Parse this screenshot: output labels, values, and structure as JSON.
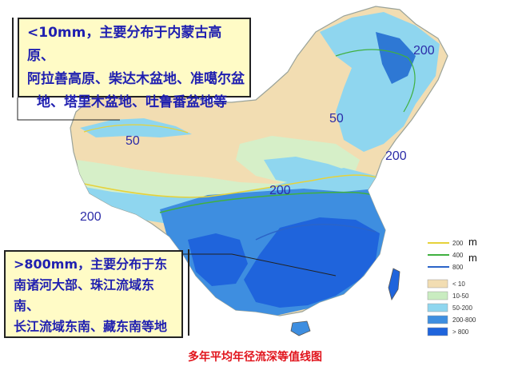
{
  "callouts": {
    "arid": {
      "lines": [
        "<10mm，主要分布于内蒙古高原、",
        "阿拉善高原、柴达木盆地、准噶尔盆",
        "地、塔里木盆地、吐鲁番盆地等"
      ]
    },
    "wet": {
      "lines": [
        ">800mm，主要分布于东",
        "南诸河大部、珠江流域东南、",
        "长江流域东南、藏东南等地"
      ]
    }
  },
  "contour_labels": {
    "ne_200": "200",
    "ne_50": "50",
    "nw_50": "50",
    "e_200": "200",
    "c_200": "200",
    "w_200": "200"
  },
  "legend": {
    "lines": [
      {
        "label": "200",
        "unit": "m",
        "color": "#e6d23a"
      },
      {
        "label": "400",
        "unit": "m",
        "color": "#40b040"
      },
      {
        "label": "800",
        "unit": "",
        "color": "#2b64c8"
      }
    ],
    "fills": [
      {
        "label": "< 10",
        "color": "#f2ddb2"
      },
      {
        "label": "10-50",
        "color": "#c9ecc0"
      },
      {
        "label": "50-200",
        "color": "#8fd6ef"
      },
      {
        "label": "200-800",
        "color": "#3e8ee0"
      },
      {
        "label": "> 800",
        "color": "#1f64dc"
      }
    ]
  },
  "caption": "多年平均年径流深等值线图"
}
